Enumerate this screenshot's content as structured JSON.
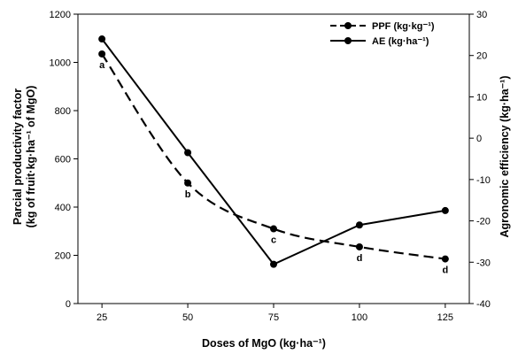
{
  "chart_data": {
    "type": "line",
    "x": [
      25,
      50,
      75,
      100,
      125
    ],
    "xlabel": "Doses of MgO (kg·ha⁻¹)",
    "ylabel_left_line1": "Parcial productivity factor",
    "ylabel_left_line2": "(kg of fruit·kg·ha⁻¹ of MgO)",
    "ylabel_right": "Agronomic efficiency (kg·ha⁻¹)",
    "xticks": [
      25,
      50,
      75,
      100,
      125
    ],
    "ylim_left": [
      0,
      1200
    ],
    "yticks_left": [
      0,
      200,
      400,
      600,
      800,
      1000,
      1200
    ],
    "ylim_right": [
      -40,
      30
    ],
    "yticks_right": [
      -40,
      -30,
      -20,
      -10,
      0,
      10,
      20,
      30
    ],
    "grid": false,
    "legend_position": "top-right",
    "series": [
      {
        "name": "PPF (kg·kg⁻¹)",
        "axis": "left",
        "style": "dashed",
        "values": [
          1035,
          500,
          310,
          235,
          185
        ],
        "labels": [
          "a",
          "b",
          "c",
          "d",
          "d"
        ]
      },
      {
        "name": "AE (kg·ha⁻¹)",
        "axis": "right",
        "style": "solid",
        "values": [
          24,
          -3.5,
          -30.5,
          -21,
          -17.5
        ]
      }
    ]
  }
}
